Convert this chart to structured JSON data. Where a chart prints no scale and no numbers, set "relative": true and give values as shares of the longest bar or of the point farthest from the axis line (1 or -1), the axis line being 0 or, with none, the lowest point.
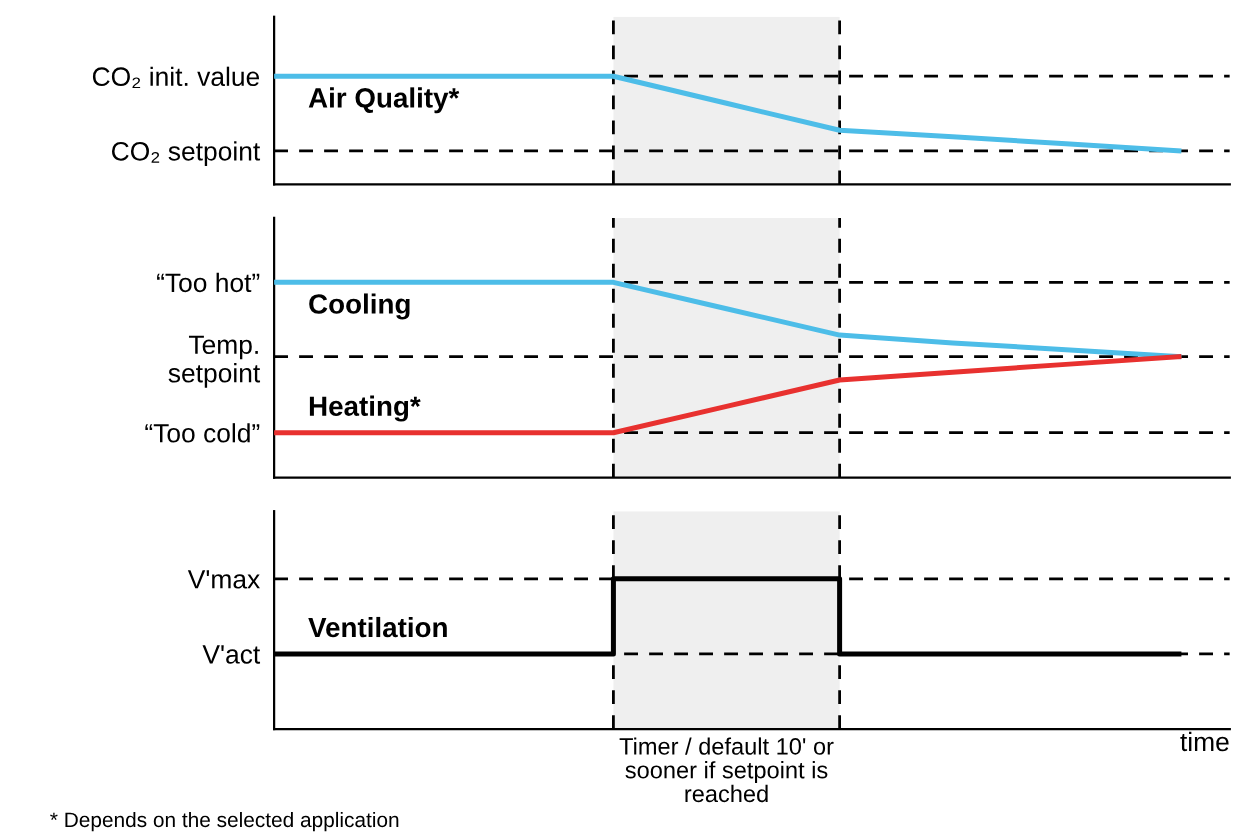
{
  "chart_data": [
    {
      "type": "line",
      "relative": true,
      "categories": [
        null,
        null,
        null,
        null,
        null,
        null,
        null,
        null,
        null
      ],
      "tick_labels": false,
      "grid": "y",
      "series": [
        {
          "name": "Air Quality*",
          "color": "#4dbde8",
          "values": [
            1,
            1,
            1,
            1,
            0.75,
            0.5,
            0.44,
            0.375,
            0.31
          ]
        }
      ],
      "annotations": [
        "CO₂ init. value",
        "CO₂ setpoint"
      ]
    },
    {
      "type": "line",
      "relative": true,
      "categories": [
        null,
        null,
        null,
        null,
        null,
        null,
        null,
        null,
        null
      ],
      "tick_labels": false,
      "grid": "y",
      "series": [
        {
          "name": "Cooling",
          "color": "#4dbde8",
          "values": [
            1,
            1,
            1,
            1,
            0.865,
            0.73,
            0.69,
            0.655,
            0.62
          ]
        },
        {
          "name": "Heating*",
          "color": "#e8312f",
          "values": [
            0.23,
            0.23,
            0.23,
            0.23,
            0.365,
            0.5,
            0.54,
            0.58,
            0.62
          ]
        }
      ],
      "annotations": [
        "“Too hot”",
        "Temp.\nsetpoint",
        "“Too cold”"
      ]
    },
    {
      "type": "step",
      "relative": true,
      "categories": [
        null,
        null,
        null,
        null,
        null,
        null,
        null,
        null,
        null
      ],
      "tick_labels": false,
      "grid": "y",
      "xlabel": "time",
      "series": [
        {
          "name": "Ventilation",
          "color": "#000000",
          "values": [
            0.5,
            0.5,
            0.5,
            1,
            1,
            0.5,
            0.5,
            0.5,
            0.5
          ]
        }
      ],
      "annotations": [
        "V'max",
        "V'act",
        "Timer / default 10' or\nsooner if setpoint is\nreached",
        "* Depends on the selected application"
      ]
    }
  ]
}
